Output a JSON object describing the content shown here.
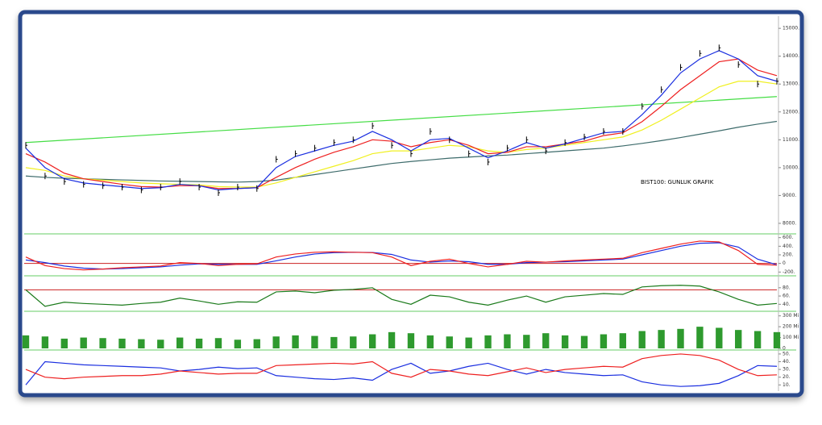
{
  "chart_data": [
    {
      "type": "line",
      "annotation": "BIST100: GUNLUK GRAFIK",
      "ylim": [
        7680,
        15380
      ],
      "yticks": [
        {
          "value": 8000,
          "label": "8000."
        },
        {
          "value": 9000,
          "label": "9000."
        },
        {
          "value": 10000,
          "label": "10000."
        },
        {
          "value": 11000,
          "label": "11000."
        },
        {
          "value": 12000,
          "label": "12000."
        },
        {
          "value": 13000,
          "label": "13000."
        },
        {
          "value": 14000,
          "label": "14000."
        },
        {
          "value": 15000,
          "label": "15000."
        }
      ],
      "trendline": {
        "color": "#44dd44",
        "values": [
          10900,
          12550
        ]
      },
      "series": [
        {
          "color": "#3d6b6b",
          "values": [
            9700,
            9650,
            9620,
            9600,
            9580,
            9560,
            9540,
            9520,
            9510,
            9500,
            9490,
            9480,
            9500,
            9550,
            9650,
            9750,
            9850,
            9950,
            10050,
            10150,
            10220,
            10280,
            10340,
            10380,
            10420,
            10450,
            10500,
            10550,
            10600,
            10650,
            10700,
            10780,
            10870,
            10970,
            11080,
            11200,
            11320,
            11450,
            11560,
            11660
          ]
        },
        {
          "color": "#f0f020",
          "values": [
            10000,
            9900,
            9700,
            9600,
            9550,
            9500,
            9450,
            9420,
            9400,
            9380,
            9320,
            9300,
            9300,
            9450,
            9650,
            9850,
            10050,
            10250,
            10500,
            10600,
            10600,
            10700,
            10800,
            10750,
            10600,
            10550,
            10650,
            10700,
            10800,
            10900,
            11000,
            11100,
            11350,
            11700,
            12100,
            12500,
            12900,
            13100,
            13100,
            13000
          ]
        },
        {
          "color": "#ee2020",
          "values": [
            10500,
            10200,
            9800,
            9600,
            9500,
            9400,
            9320,
            9300,
            9350,
            9350,
            9250,
            9250,
            9280,
            9650,
            10000,
            10300,
            10550,
            10750,
            11000,
            10950,
            10750,
            10900,
            11000,
            10800,
            10500,
            10550,
            10750,
            10750,
            10850,
            10950,
            11150,
            11250,
            11650,
            12200,
            12800,
            13300,
            13800,
            13900,
            13500,
            13300
          ]
        },
        {
          "color": "#1a2ee0",
          "values": [
            10700,
            10000,
            9600,
            9450,
            9380,
            9320,
            9250,
            9280,
            9400,
            9350,
            9200,
            9250,
            9280,
            10000,
            10400,
            10600,
            10800,
            10950,
            11300,
            11000,
            10600,
            11000,
            11050,
            10700,
            10350,
            10600,
            10900,
            10700,
            10850,
            11050,
            11250,
            11300,
            11900,
            12600,
            13400,
            13900,
            14200,
            13900,
            13300,
            13100
          ]
        },
        {
          "color": "#000000",
          "marker": "tick",
          "values": [
            10800,
            9700,
            9500,
            9400,
            9350,
            9300,
            9200,
            9300,
            9500,
            9300,
            9100,
            9300,
            9250,
            10300,
            10500,
            10700,
            10900,
            11000,
            11500,
            10800,
            10500,
            11300,
            11000,
            10500,
            10200,
            10700,
            11000,
            10600,
            10900,
            11100,
            11300,
            11300,
            12200,
            12800,
            13600,
            14100,
            14300,
            13700,
            13000,
            13100
          ]
        }
      ]
    },
    {
      "type": "line",
      "ylim": [
        -250,
        650
      ],
      "yticks": [
        {
          "value": -200,
          "label": "-200."
        },
        0,
        {
          "value": 200,
          "label": "200."
        },
        {
          "value": 400,
          "label": "400."
        },
        {
          "value": 600,
          "label": "600."
        }
      ],
      "hlines": [
        {
          "value": 0,
          "color": "#cc2020"
        }
      ],
      "series": [
        {
          "color": "#1a2ee0",
          "values": [
            80,
            20,
            -60,
            -110,
            -130,
            -120,
            -100,
            -80,
            -40,
            -10,
            -20,
            -20,
            -20,
            60,
            150,
            220,
            250,
            260,
            255,
            210,
            80,
            30,
            60,
            40,
            -20,
            -20,
            20,
            30,
            40,
            60,
            80,
            100,
            200,
            300,
            400,
            470,
            480,
            380,
            100,
            -30
          ]
        },
        {
          "color": "#ee2020",
          "values": [
            150,
            -50,
            -120,
            -150,
            -130,
            -100,
            -80,
            -60,
            20,
            0,
            -50,
            -20,
            -10,
            150,
            220,
            260,
            270,
            260,
            250,
            150,
            -50,
            50,
            100,
            0,
            -80,
            -20,
            50,
            30,
            60,
            80,
            100,
            120,
            250,
            350,
            450,
            520,
            500,
            300,
            -20,
            -40
          ]
        }
      ]
    },
    {
      "type": "line",
      "ylim": [
        25,
        105
      ],
      "yticks": [
        {
          "value": 40,
          "label": "40."
        },
        {
          "value": 60,
          "label": "60."
        },
        {
          "value": 80,
          "label": "80."
        }
      ],
      "hlines": [
        {
          "value": 75,
          "color": "#cc2020"
        }
      ],
      "series": [
        {
          "color": "#1a7a1a",
          "values": [
            75,
            35,
            45,
            42,
            40,
            38,
            42,
            45,
            55,
            48,
            40,
            46,
            45,
            70,
            72,
            68,
            74,
            76,
            80,
            52,
            40,
            62,
            58,
            45,
            38,
            50,
            60,
            45,
            58,
            62,
            66,
            64,
            82,
            85,
            86,
            84,
            70,
            52,
            38,
            42
          ]
        }
      ]
    },
    {
      "type": "bar",
      "ylim": [
        0,
        320
      ],
      "color": "#2e9a2e",
      "yticks": [
        0,
        {
          "value": 100,
          "label": "100 Mi"
        },
        {
          "value": 200,
          "label": "200 Mi"
        },
        {
          "value": 300,
          "label": "300 Mi"
        }
      ],
      "values": [
        120,
        110,
        90,
        100,
        95,
        90,
        85,
        80,
        100,
        90,
        95,
        80,
        85,
        110,
        120,
        115,
        105,
        110,
        130,
        150,
        140,
        120,
        110,
        100,
        120,
        130,
        125,
        140,
        120,
        115,
        130,
        140,
        160,
        170,
        180,
        200,
        190,
        170,
        160,
        150
      ]
    },
    {
      "type": "line",
      "ylim": [
        3,
        52
      ],
      "yticks": [
        {
          "value": 10,
          "label": "10."
        },
        {
          "value": 20,
          "label": "20."
        },
        {
          "value": 30,
          "label": "30."
        },
        {
          "value": 40,
          "label": "40."
        },
        {
          "value": 50,
          "label": "50."
        }
      ],
      "series": [
        {
          "color": "#1a2ee0",
          "values": [
            10,
            40,
            38,
            36,
            35,
            34,
            33,
            32,
            28,
            30,
            33,
            31,
            32,
            22,
            20,
            18,
            17,
            19,
            16,
            30,
            38,
            25,
            28,
            34,
            38,
            30,
            24,
            30,
            26,
            24,
            22,
            23,
            14,
            10,
            8,
            9,
            12,
            22,
            35,
            34
          ]
        },
        {
          "color": "#ee2020",
          "values": [
            30,
            20,
            18,
            20,
            21,
            22,
            22,
            24,
            28,
            26,
            24,
            25,
            25,
            35,
            36,
            37,
            38,
            37,
            40,
            25,
            20,
            30,
            28,
            24,
            22,
            27,
            32,
            26,
            30,
            32,
            34,
            33,
            44,
            48,
            50,
            48,
            42,
            30,
            22,
            23
          ]
        }
      ]
    }
  ]
}
